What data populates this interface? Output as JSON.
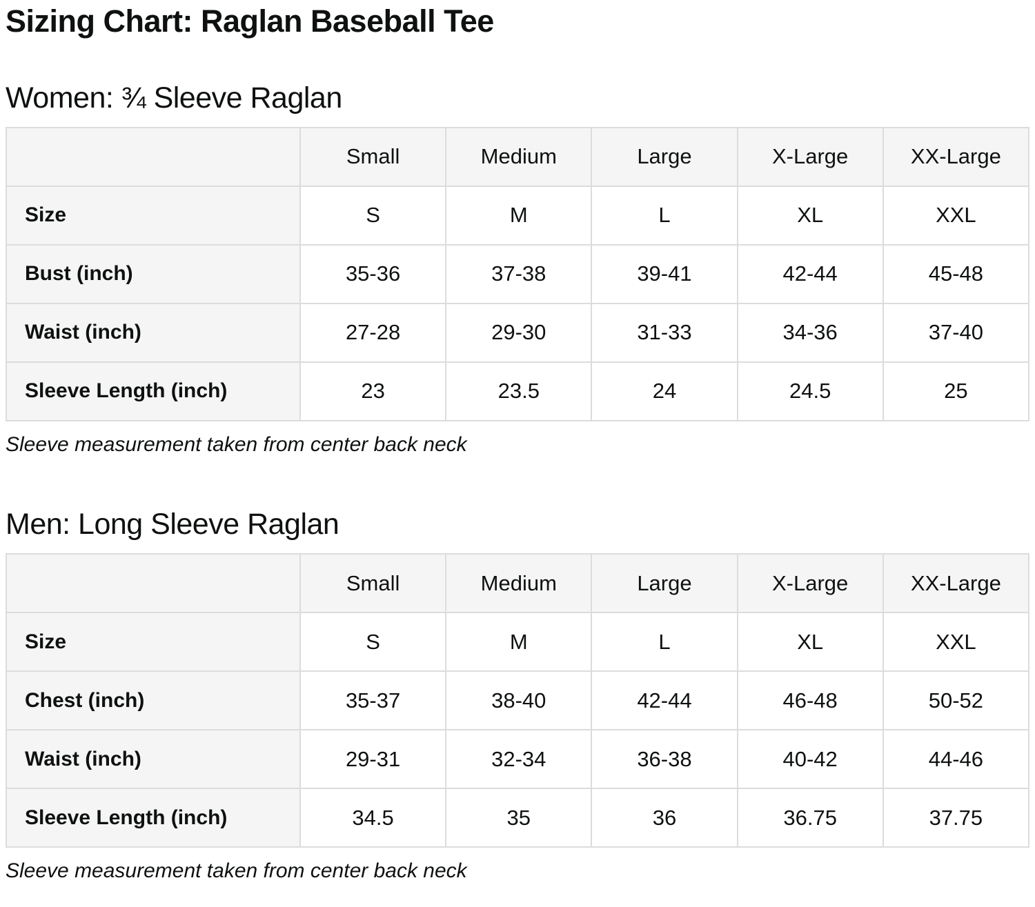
{
  "page": {
    "title": "Sizing Chart: Raglan Baseball Tee"
  },
  "colors": {
    "text": "#0f1111",
    "header_cell_background": "#f5f5f6",
    "data_cell_background": "#ffffff",
    "border": "#dcdcdc"
  },
  "sections": [
    {
      "heading": "Women: ¾ Sleeve Raglan",
      "note": "Sleeve measurement taken from center back neck",
      "table": {
        "columns": [
          "",
          "Small",
          "Medium",
          "Large",
          "X-Large",
          "XX-Large"
        ],
        "rows": [
          {
            "label": "Size",
            "values": [
              "S",
              "M",
              "L",
              "XL",
              "XXL"
            ]
          },
          {
            "label": "Bust (inch)",
            "values": [
              "35-36",
              "37-38",
              "39-41",
              "42-44",
              "45-48"
            ]
          },
          {
            "label": "Waist (inch)",
            "values": [
              "27-28",
              "29-30",
              "31-33",
              "34-36",
              "37-40"
            ]
          },
          {
            "label": "Sleeve Length (inch)",
            "values": [
              "23",
              "23.5",
              "24",
              "24.5",
              "25"
            ]
          }
        ]
      }
    },
    {
      "heading": "Men: Long Sleeve Raglan",
      "note": "Sleeve measurement taken from center back neck",
      "table": {
        "columns": [
          "",
          "Small",
          "Medium",
          "Large",
          "X-Large",
          "XX-Large"
        ],
        "rows": [
          {
            "label": "Size",
            "values": [
              "S",
              "M",
              "L",
              "XL",
              "XXL"
            ]
          },
          {
            "label": "Chest (inch)",
            "values": [
              "35-37",
              "38-40",
              "42-44",
              "46-48",
              "50-52"
            ]
          },
          {
            "label": "Waist (inch)",
            "values": [
              "29-31",
              "32-34",
              "36-38",
              "40-42",
              "44-46"
            ]
          },
          {
            "label": "Sleeve Length (inch)",
            "values": [
              "34.5",
              "35",
              "36",
              "36.75",
              "37.75"
            ]
          }
        ]
      }
    }
  ]
}
